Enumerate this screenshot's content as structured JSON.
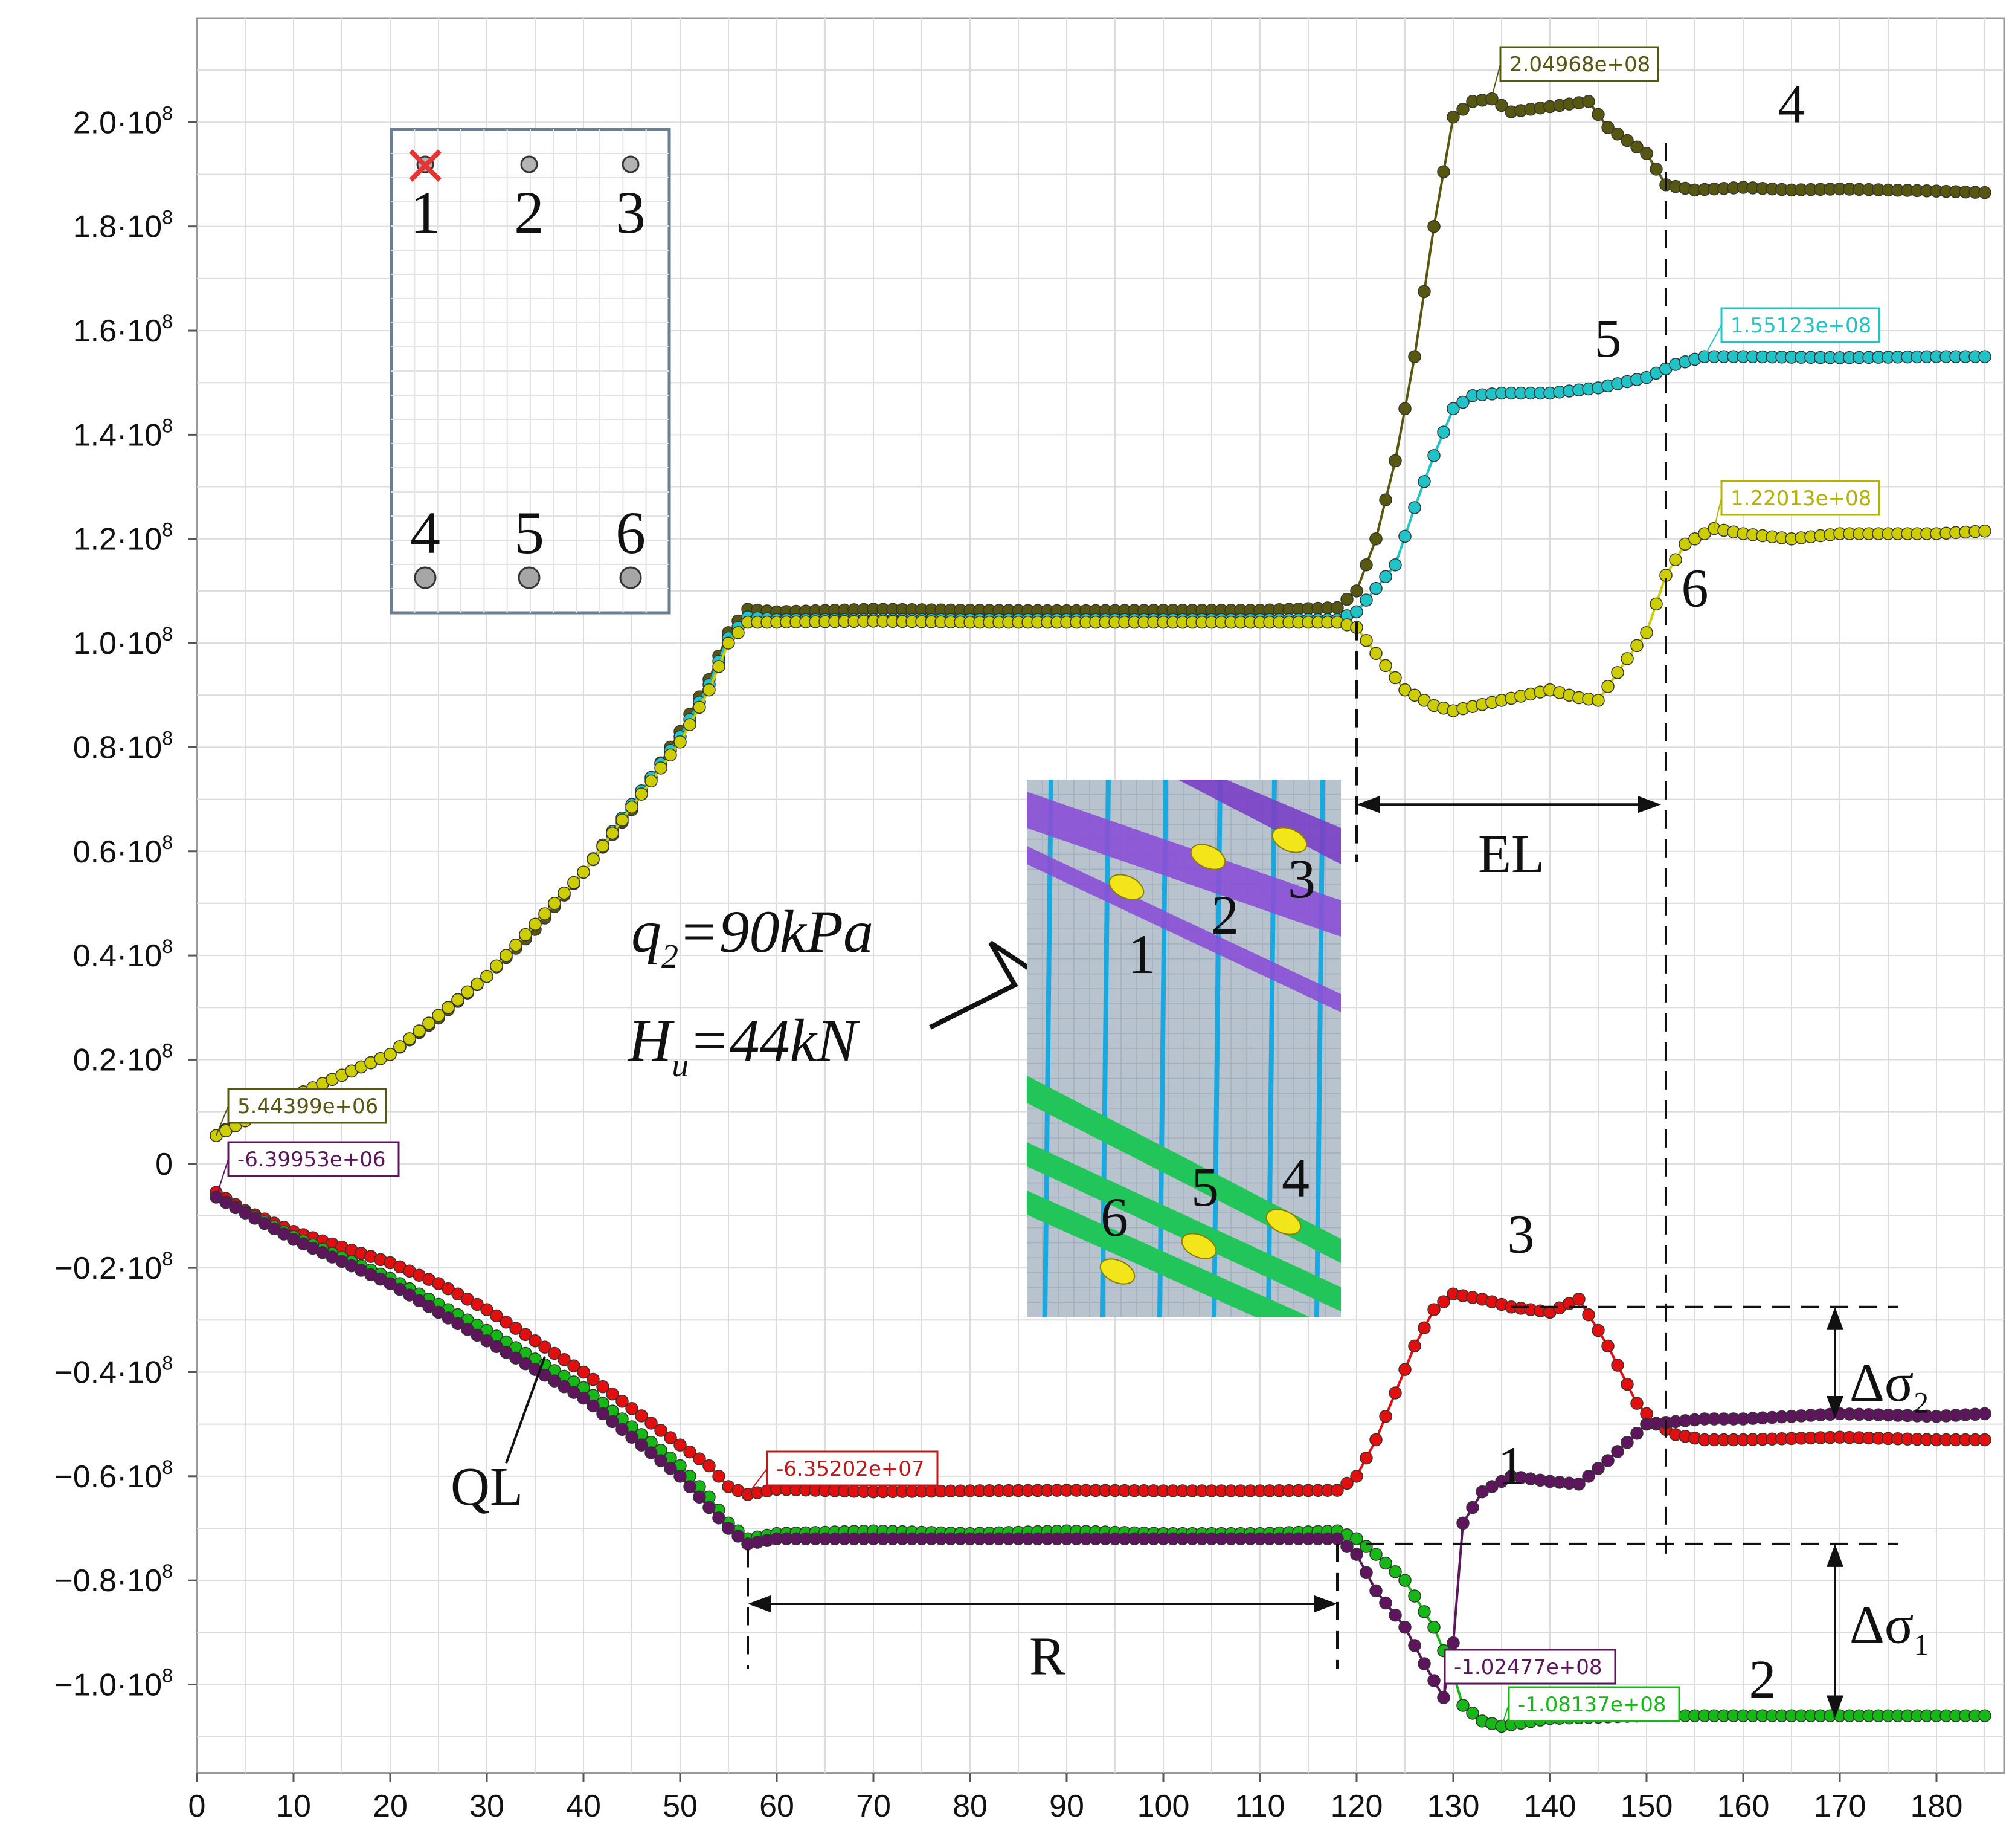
{
  "chart_data": {
    "type": "line",
    "xlabel": "",
    "ylabel": "",
    "xlim": [
      0,
      187
    ],
    "ylim": [
      -117000000.0,
      220000000.0
    ],
    "grid": true,
    "x_ticks": [
      0,
      10,
      20,
      30,
      40,
      50,
      60,
      70,
      80,
      90,
      100,
      110,
      120,
      130,
      140,
      150,
      160,
      170,
      180
    ],
    "y_ticks": [
      {
        "value": 200000000.0,
        "mant": "2.0",
        "exp": "8"
      },
      {
        "value": 180000000.0,
        "mant": "1.8",
        "exp": "8"
      },
      {
        "value": 160000000.0,
        "mant": "1.6",
        "exp": "8"
      },
      {
        "value": 140000000.0,
        "mant": "1.4",
        "exp": "8"
      },
      {
        "value": 120000000.0,
        "mant": "1.2",
        "exp": "8"
      },
      {
        "value": 100000000.0,
        "mant": "1.0",
        "exp": "8"
      },
      {
        "value": 80000000.0,
        "mant": "0.8",
        "exp": "8"
      },
      {
        "value": 60000000.0,
        "mant": "0.6",
        "exp": "8"
      },
      {
        "value": 40000000.0,
        "mant": "0.4",
        "exp": "8"
      },
      {
        "value": 20000000.0,
        "mant": "0.2",
        "exp": "8"
      },
      {
        "value": 0,
        "mant": "0",
        "exp": ""
      },
      {
        "value": -20000000.0,
        "mant": "−0.2",
        "exp": "8"
      },
      {
        "value": -40000000.0,
        "mant": "−0.4",
        "exp": "8"
      },
      {
        "value": -60000000.0,
        "mant": "−0.6",
        "exp": "8"
      },
      {
        "value": -80000000.0,
        "mant": "−0.8",
        "exp": "8"
      },
      {
        "value": -100000000.0,
        "mant": "−1.0",
        "exp": "8"
      }
    ],
    "tick_times": "·10",
    "series": [
      {
        "name": "4",
        "color": "#57570f",
        "points": [
          [
            2,
            5400000.0
          ],
          [
            5,
            9000000.0
          ],
          [
            10,
            13000000.0
          ],
          [
            15,
            17000000.0
          ],
          [
            20,
            21000000.0
          ],
          [
            25,
            28000000.0
          ],
          [
            30,
            36000000.0
          ],
          [
            35,
            45000000.0
          ],
          [
            40,
            56000000.0
          ],
          [
            45,
            68000000.0
          ],
          [
            50,
            83000000.0
          ],
          [
            53,
            93000000.0
          ],
          [
            55,
            102000000.0
          ],
          [
            57,
            106500000.0
          ],
          [
            60,
            106000000.0
          ],
          [
            70,
            106500000.0
          ],
          [
            80,
            106300000.0
          ],
          [
            90,
            106200000.0
          ],
          [
            100,
            106300000.0
          ],
          [
            110,
            106300000.0
          ],
          [
            118,
            106800000.0
          ],
          [
            120,
            110000000.0
          ],
          [
            122,
            120000000.0
          ],
          [
            124,
            135000000.0
          ],
          [
            126,
            155000000.0
          ],
          [
            128,
            180000000.0
          ],
          [
            130,
            201000000.0
          ],
          [
            132,
            204000000.0
          ],
          [
            134,
            204500000.0
          ],
          [
            136,
            202000000.0
          ],
          [
            140,
            203000000.0
          ],
          [
            144,
            204000000.0
          ],
          [
            146,
            199000000.0
          ],
          [
            150,
            194000000.0
          ],
          [
            152,
            188000000.0
          ],
          [
            155,
            187000000.0
          ],
          [
            160,
            187500000.0
          ],
          [
            165,
            187000000.0
          ],
          [
            170,
            187200000.0
          ],
          [
            175,
            187000000.0
          ],
          [
            180,
            186800000.0
          ],
          [
            185,
            186500000.0
          ]
        ]
      },
      {
        "name": "5",
        "color": "#1fc3c8",
        "points": [
          [
            2,
            5400000.0
          ],
          [
            10,
            13000000.0
          ],
          [
            20,
            21000000.0
          ],
          [
            30,
            36000000.0
          ],
          [
            40,
            56000000.0
          ],
          [
            50,
            82000000.0
          ],
          [
            53,
            92000000.0
          ],
          [
            55,
            101000000.0
          ],
          [
            57,
            105000000.0
          ],
          [
            60,
            104500000.0
          ],
          [
            70,
            104500000.0
          ],
          [
            80,
            104500000.0
          ],
          [
            90,
            104500000.0
          ],
          [
            100,
            104500000.0
          ],
          [
            110,
            104500000.0
          ],
          [
            118,
            104500000.0
          ],
          [
            120,
            106000000.0
          ],
          [
            124,
            115000000.0
          ],
          [
            126,
            126000000.0
          ],
          [
            128,
            136000000.0
          ],
          [
            130,
            145000000.0
          ],
          [
            132,
            147500000.0
          ],
          [
            135,
            148000000.0
          ],
          [
            140,
            148000000.0
          ],
          [
            145,
            149000000.0
          ],
          [
            150,
            151000000.0
          ],
          [
            153,
            153500000.0
          ],
          [
            156,
            155000000.0
          ],
          [
            160,
            155000000.0
          ],
          [
            170,
            154800000.0
          ],
          [
            180,
            155000000.0
          ],
          [
            185,
            155000000.0
          ]
        ]
      },
      {
        "name": "6",
        "color": "#cdcd00",
        "points": [
          [
            2,
            5400000.0
          ],
          [
            10,
            13000000.0
          ],
          [
            20,
            21000000.0
          ],
          [
            30,
            36000000.0
          ],
          [
            40,
            56000000.0
          ],
          [
            50,
            81000000.0
          ],
          [
            53,
            91000000.0
          ],
          [
            55,
            100000000.0
          ],
          [
            57,
            104000000.0
          ],
          [
            60,
            104000000.0
          ],
          [
            70,
            104200000.0
          ],
          [
            80,
            104000000.0
          ],
          [
            90,
            104000000.0
          ],
          [
            100,
            104000000.0
          ],
          [
            110,
            104000000.0
          ],
          [
            118,
            104000000.0
          ],
          [
            120,
            103000000.0
          ],
          [
            122,
            98000000.0
          ],
          [
            125,
            91000000.0
          ],
          [
            128,
            88000000.0
          ],
          [
            130,
            87000000.0
          ],
          [
            135,
            89000000.0
          ],
          [
            140,
            91000000.0
          ],
          [
            143,
            89500000.0
          ],
          [
            145,
            89000000.0
          ],
          [
            148,
            97000000.0
          ],
          [
            150,
            102000000.0
          ],
          [
            152,
            113000000.0
          ],
          [
            154,
            119000000.0
          ],
          [
            157,
            122000000.0
          ],
          [
            160,
            121000000.0
          ],
          [
            165,
            120000000.0
          ],
          [
            170,
            121000000.0
          ],
          [
            180,
            121000000.0
          ],
          [
            185,
            121500000.0
          ]
        ]
      },
      {
        "name": "3",
        "color": "#e30e0e",
        "points": [
          [
            2,
            -5500000.0
          ],
          [
            5,
            -9000000.0
          ],
          [
            10,
            -13000000.0
          ],
          [
            15,
            -16000000.0
          ],
          [
            20,
            -19000000.0
          ],
          [
            25,
            -23000000.0
          ],
          [
            30,
            -28000000.0
          ],
          [
            35,
            -34000000.0
          ],
          [
            40,
            -40000000.0
          ],
          [
            45,
            -47000000.0
          ],
          [
            50,
            -54000000.0
          ],
          [
            53,
            -58000000.0
          ],
          [
            55,
            -62000000.0
          ],
          [
            57,
            -63500000.0
          ],
          [
            60,
            -62500000.0
          ],
          [
            70,
            -63000000.0
          ],
          [
            80,
            -62800000.0
          ],
          [
            90,
            -62700000.0
          ],
          [
            100,
            -62800000.0
          ],
          [
            110,
            -62800000.0
          ],
          [
            118,
            -62700000.0
          ],
          [
            120,
            -60000000.0
          ],
          [
            122,
            -53000000.0
          ],
          [
            124,
            -44000000.0
          ],
          [
            126,
            -35000000.0
          ],
          [
            128,
            -28000000.0
          ],
          [
            130,
            -25000000.0
          ],
          [
            133,
            -26000000.0
          ],
          [
            136,
            -27500000.0
          ],
          [
            140,
            -28500000.0
          ],
          [
            143,
            -26000000.0
          ],
          [
            146,
            -35000000.0
          ],
          [
            149,
            -46000000.0
          ],
          [
            151,
            -50000000.0
          ],
          [
            153,
            -52000000.0
          ],
          [
            156,
            -53000000.0
          ],
          [
            160,
            -53000000.0
          ],
          [
            170,
            -52500000.0
          ],
          [
            180,
            -53000000.0
          ],
          [
            185,
            -53000000.0
          ]
        ]
      },
      {
        "name": "2",
        "color": "#16b816",
        "points": [
          [
            2,
            -6400000.0
          ],
          [
            10,
            -14000000.0
          ],
          [
            20,
            -22000000.0
          ],
          [
            30,
            -32000000.0
          ],
          [
            40,
            -43000000.0
          ],
          [
            50,
            -58000000.0
          ],
          [
            53,
            -64000000.0
          ],
          [
            55,
            -69000000.0
          ],
          [
            57,
            -72000000.0
          ],
          [
            60,
            -71000000.0
          ],
          [
            70,
            -70500000.0
          ],
          [
            80,
            -71000000.0
          ],
          [
            90,
            -70500000.0
          ],
          [
            100,
            -71000000.0
          ],
          [
            110,
            -71000000.0
          ],
          [
            118,
            -70500000.0
          ],
          [
            120,
            -72000000.0
          ],
          [
            122,
            -75000000.0
          ],
          [
            125,
            -80000000.0
          ],
          [
            128,
            -89000000.0
          ],
          [
            130,
            -98000000.0
          ],
          [
            131,
            -104000000.0
          ],
          [
            133,
            -107000000.0
          ],
          [
            135,
            -108000000.0
          ],
          [
            140,
            -106500000.0
          ],
          [
            150,
            -106000000.0
          ],
          [
            160,
            -106000000.0
          ],
          [
            170,
            -106000000.0
          ],
          [
            180,
            -106000000.0
          ],
          [
            185,
            -106000000.0
          ]
        ]
      },
      {
        "name": "1",
        "color": "#5e155e",
        "points": [
          [
            2,
            -6400000.0
          ],
          [
            10,
            -14500000.0
          ],
          [
            20,
            -23000000.0
          ],
          [
            30,
            -34000000.0
          ],
          [
            40,
            -45000000.0
          ],
          [
            50,
            -60000000.0
          ],
          [
            53,
            -66000000.0
          ],
          [
            55,
            -70000000.0
          ],
          [
            57,
            -73000000.0
          ],
          [
            60,
            -72000000.0
          ],
          [
            70,
            -72000000.0
          ],
          [
            80,
            -72000000.0
          ],
          [
            90,
            -72000000.0
          ],
          [
            100,
            -72000000.0
          ],
          [
            110,
            -72000000.0
          ],
          [
            118,
            -72000000.0
          ],
          [
            120,
            -75000000.0
          ],
          [
            122,
            -82000000.0
          ],
          [
            125,
            -89000000.0
          ],
          [
            127,
            -96000000.0
          ],
          [
            129,
            -102500000.0
          ],
          [
            130,
            -92000000.0
          ],
          [
            131,
            -69000000.0
          ],
          [
            133,
            -63000000.0
          ],
          [
            136,
            -60000000.0
          ],
          [
            140,
            -61000000.0
          ],
          [
            143,
            -61500000.0
          ],
          [
            146,
            -57000000.0
          ],
          [
            150,
            -50000000.0
          ],
          [
            153,
            -49500000.0
          ],
          [
            156,
            -49000000.0
          ],
          [
            160,
            -49000000.0
          ],
          [
            170,
            -48000000.0
          ],
          [
            180,
            -48500000.0
          ],
          [
            185,
            -48000000.0
          ]
        ]
      }
    ],
    "value_callouts": [
      {
        "text": "2.04968e+08",
        "color": "#57570f",
        "x": 134,
        "y": 204968000.0
      },
      {
        "text": "1.55123e+08",
        "color": "#1fc3c8",
        "x": 156,
        "y": 155123000.0
      },
      {
        "text": "1.22013e+08",
        "color": "#b4b400",
        "x": 157,
        "y": 122013000.0
      },
      {
        "text": "5.44399e+06",
        "color": "#57570f",
        "x": 2,
        "y": 5443990.0
      },
      {
        "text": "-6.39953e+06",
        "color": "#5e155e",
        "x": 2,
        "y": -6399530.0
      },
      {
        "text": "-6.35202e+07",
        "color": "#c01818",
        "x": 57,
        "y": -63520200.0
      },
      {
        "text": "-1.02477e+08",
        "color": "#5e155e",
        "x": 129,
        "y": -102477000.0
      },
      {
        "text": "-1.08137e+08",
        "color": "#16b816",
        "x": 135,
        "y": -108137000.0
      }
    ],
    "curve_labels": [
      "4",
      "5",
      "6",
      "3",
      "1",
      "2"
    ],
    "annotations": {
      "EL": "EL",
      "R": "R",
      "QL": "QL",
      "dsigma1_base": "Δσ",
      "dsigma1_sub": "1",
      "dsigma2_base": "Δσ",
      "dsigma2_sub": "2",
      "load_q_main": "q",
      "load_q_sub": "2",
      "load_q_rest": "=90kPa",
      "load_h_main": "H",
      "load_h_sub": "u",
      "load_h_rest": "=44kN"
    },
    "layout_inset": {
      "labels_top": [
        "1",
        "2",
        "3"
      ],
      "labels_bottom": [
        "4",
        "5",
        "6"
      ]
    },
    "model_inset": {
      "labels": [
        "1",
        "2",
        "3",
        "4",
        "5",
        "6"
      ]
    }
  }
}
